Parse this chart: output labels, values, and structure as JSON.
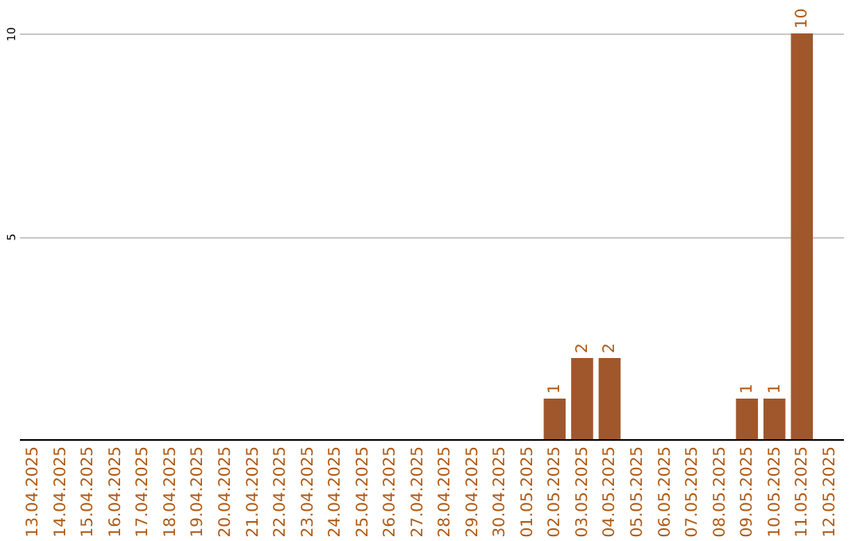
{
  "chart_data": {
    "type": "bar",
    "categories": [
      "13.04.2025",
      "14.04.2025",
      "15.04.2025",
      "16.04.2025",
      "17.04.2025",
      "18.04.2025",
      "19.04.2025",
      "20.04.2025",
      "21.04.2025",
      "22.04.2025",
      "23.04.2025",
      "24.04.2025",
      "25.04.2025",
      "26.04.2025",
      "27.04.2025",
      "28.04.2025",
      "29.04.2025",
      "30.04.2025",
      "01.05.2025",
      "02.05.2025",
      "03.05.2025",
      "04.05.2025",
      "05.05.2025",
      "06.05.2025",
      "07.05.2025",
      "08.05.2025",
      "09.05.2025",
      "10.05.2025",
      "11.05.2025",
      "12.05.2025"
    ],
    "values": [
      0,
      0,
      0,
      0,
      0,
      0,
      0,
      0,
      0,
      0,
      0,
      0,
      0,
      0,
      0,
      0,
      0,
      0,
      0,
      1,
      2,
      2,
      0,
      0,
      0,
      0,
      1,
      1,
      10,
      0
    ],
    "value_labels": [
      null,
      null,
      null,
      null,
      null,
      null,
      null,
      null,
      null,
      null,
      null,
      null,
      null,
      null,
      null,
      null,
      null,
      null,
      null,
      "1",
      "2",
      "2",
      null,
      null,
      null,
      null,
      "1",
      "1",
      "10",
      null
    ],
    "color": "#a0572c",
    "ylim": [
      0,
      10
    ],
    "yticks": [
      5,
      10
    ],
    "grid": "y"
  }
}
